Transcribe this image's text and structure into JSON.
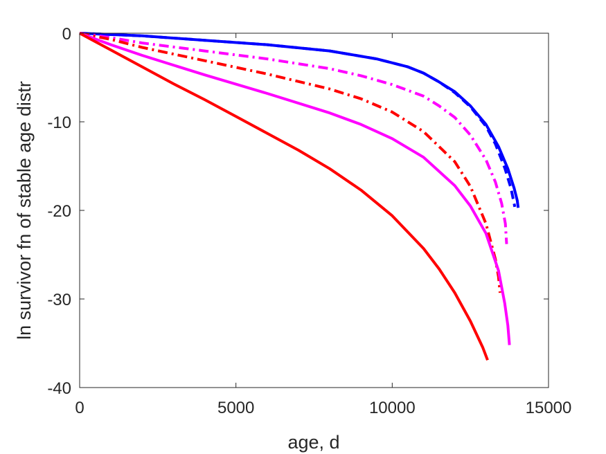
{
  "chart_data": {
    "type": "line",
    "title": "",
    "xlabel": "age, d",
    "ylabel": "ln survivor fn of stable age distr",
    "xlim": [
      0,
      15000
    ],
    "ylim": [
      -40,
      0
    ],
    "xticks": [
      0,
      5000,
      10000,
      15000
    ],
    "xtick_labels": [
      "0",
      "5000",
      "10000",
      "15000"
    ],
    "yticks": [
      0,
      -10,
      -20,
      -30,
      -40
    ],
    "ytick_labels": [
      "0",
      "-10",
      "-20",
      "-30",
      "-40"
    ],
    "grid": false,
    "legend": "none",
    "series": [
      {
        "color": "#0000ff",
        "dash": "solid",
        "points": [
          [
            0,
            0
          ],
          [
            2000,
            -0.3
          ],
          [
            4000,
            -0.8
          ],
          [
            6000,
            -1.3
          ],
          [
            8000,
            -2.0
          ],
          [
            9500,
            -2.9
          ],
          [
            10500,
            -3.8
          ],
          [
            11000,
            -4.5
          ],
          [
            11500,
            -5.5
          ],
          [
            12000,
            -6.6
          ],
          [
            12500,
            -8.2
          ],
          [
            13000,
            -10.3
          ],
          [
            13400,
            -12.8
          ],
          [
            13700,
            -15.3
          ],
          [
            13900,
            -17.5
          ],
          [
            14000,
            -18.9
          ],
          [
            14030,
            -19.7
          ]
        ]
      },
      {
        "color": "#0000ff",
        "dash": "dashed",
        "points": [
          [
            0,
            0
          ],
          [
            2000,
            -0.3
          ],
          [
            4000,
            -0.8
          ],
          [
            6000,
            -1.3
          ],
          [
            8000,
            -2.0
          ],
          [
            9500,
            -2.9
          ],
          [
            10500,
            -3.8
          ],
          [
            11000,
            -4.5
          ],
          [
            11500,
            -5.5
          ],
          [
            12000,
            -6.7
          ],
          [
            12500,
            -8.3
          ],
          [
            13000,
            -10.5
          ],
          [
            13300,
            -12.5
          ],
          [
            13600,
            -15.2
          ],
          [
            13800,
            -17.5
          ],
          [
            13920,
            -19.6
          ]
        ]
      },
      {
        "color": "#ff00ff",
        "dash": "dashdot",
        "points": [
          [
            0,
            0
          ],
          [
            1000,
            -0.5
          ],
          [
            2000,
            -1.1
          ],
          [
            4000,
            -2.0
          ],
          [
            6000,
            -2.9
          ],
          [
            8000,
            -4.0
          ],
          [
            9000,
            -4.8
          ],
          [
            10000,
            -5.8
          ],
          [
            11000,
            -7.1
          ],
          [
            11500,
            -8.2
          ],
          [
            12000,
            -9.5
          ],
          [
            12500,
            -11.5
          ],
          [
            13000,
            -14.3
          ],
          [
            13300,
            -16.8
          ],
          [
            13500,
            -19.2
          ],
          [
            13620,
            -21.5
          ],
          [
            13660,
            -23.8
          ]
        ]
      },
      {
        "color": "#ff0000",
        "dash": "dashdot",
        "points": [
          [
            0,
            0
          ],
          [
            1000,
            -0.7
          ],
          [
            2000,
            -1.6
          ],
          [
            4000,
            -3.1
          ],
          [
            6000,
            -4.6
          ],
          [
            8000,
            -6.3
          ],
          [
            9000,
            -7.4
          ],
          [
            10000,
            -8.9
          ],
          [
            11000,
            -11.1
          ],
          [
            12000,
            -14.5
          ],
          [
            12500,
            -17.3
          ],
          [
            13000,
            -21.5
          ],
          [
            13300,
            -25.5
          ],
          [
            13400,
            -27.5
          ],
          [
            13450,
            -29.3
          ]
        ]
      },
      {
        "color": "#ff00ff",
        "dash": "solid",
        "points": [
          [
            0,
            0
          ],
          [
            1000,
            -1.3
          ],
          [
            2000,
            -2.5
          ],
          [
            4000,
            -4.7
          ],
          [
            6000,
            -6.8
          ],
          [
            8000,
            -9.0
          ],
          [
            9000,
            -10.3
          ],
          [
            10000,
            -11.9
          ],
          [
            11000,
            -14.0
          ],
          [
            12000,
            -17.2
          ],
          [
            12500,
            -19.5
          ],
          [
            13000,
            -22.6
          ],
          [
            13400,
            -26.8
          ],
          [
            13600,
            -30.5
          ],
          [
            13700,
            -33.0
          ],
          [
            13750,
            -35.2
          ]
        ]
      },
      {
        "color": "#ff0000",
        "dash": "solid",
        "points": [
          [
            0,
            0
          ],
          [
            1000,
            -1.9
          ],
          [
            2000,
            -3.8
          ],
          [
            3000,
            -5.7
          ],
          [
            4000,
            -7.5
          ],
          [
            5000,
            -9.4
          ],
          [
            6000,
            -11.3
          ],
          [
            7000,
            -13.2
          ],
          [
            8000,
            -15.3
          ],
          [
            9000,
            -17.7
          ],
          [
            10000,
            -20.6
          ],
          [
            11000,
            -24.3
          ],
          [
            11500,
            -26.6
          ],
          [
            12000,
            -29.3
          ],
          [
            12500,
            -32.5
          ],
          [
            12900,
            -35.5
          ],
          [
            13050,
            -36.9
          ]
        ]
      }
    ]
  }
}
